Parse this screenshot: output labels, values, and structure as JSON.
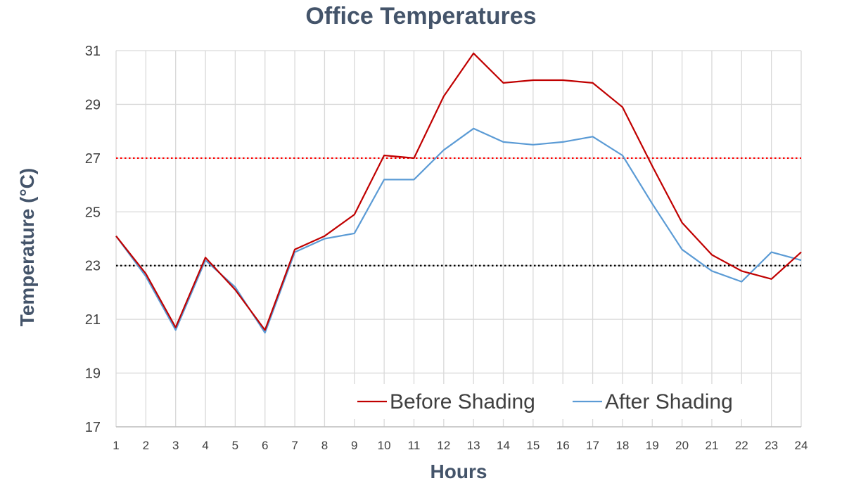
{
  "chart_data": {
    "type": "line",
    "title": "Office Temperatures",
    "xlabel": "Hours",
    "ylabel": "Temperature (°C)",
    "x": [
      1,
      2,
      3,
      4,
      5,
      6,
      7,
      8,
      9,
      10,
      11,
      12,
      13,
      14,
      15,
      16,
      17,
      18,
      19,
      20,
      21,
      22,
      23,
      24
    ],
    "ylim": [
      17,
      31
    ],
    "yticks": [
      17,
      19,
      21,
      23,
      25,
      27,
      29,
      31
    ],
    "grid": true,
    "legend_position": "bottom-right",
    "series": [
      {
        "name": "Before Shading",
        "color": "#c00000",
        "values": [
          24.1,
          22.7,
          20.7,
          23.3,
          22.1,
          20.6,
          23.6,
          24.1,
          24.9,
          27.1,
          27.0,
          29.3,
          30.9,
          29.8,
          29.9,
          29.9,
          29.8,
          28.9,
          26.7,
          24.6,
          23.4,
          22.8,
          22.5,
          23.5
        ]
      },
      {
        "name": "After Shading",
        "color": "#5b9bd5",
        "values": [
          24.1,
          22.6,
          20.6,
          23.2,
          22.2,
          20.5,
          23.5,
          24.0,
          24.2,
          26.2,
          26.2,
          27.3,
          28.1,
          27.6,
          27.5,
          27.6,
          27.8,
          27.1,
          25.3,
          23.6,
          22.8,
          22.4,
          23.5,
          23.2
        ]
      }
    ],
    "reference_lines": [
      {
        "value": 27,
        "color": "#ff0000",
        "style": "dotted"
      },
      {
        "value": 23,
        "color": "#000000",
        "style": "dotted"
      }
    ],
    "colors": {
      "title": "#44546a",
      "grid": "#d9d9d9",
      "tick_label": "#404040"
    }
  }
}
